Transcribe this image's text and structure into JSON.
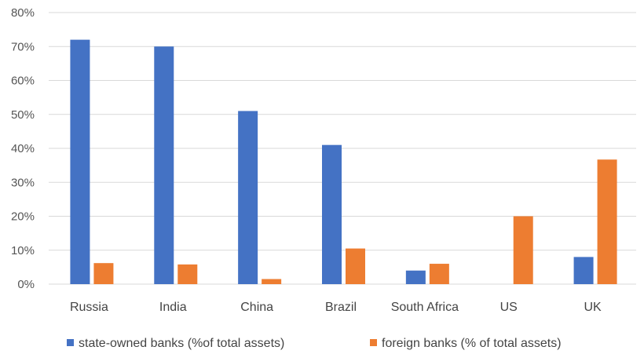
{
  "chart_data": {
    "type": "bar",
    "categories": [
      "Russia",
      "India",
      "China",
      "Brazil",
      "South Africa",
      "US",
      "UK"
    ],
    "series": [
      {
        "name": "state-owned banks (%of total assets)",
        "color": "#4472C4",
        "values": [
          72,
          70,
          51,
          41,
          4,
          null,
          8
        ]
      },
      {
        "name": "foreign banks (% of total assets)",
        "color": "#ED7D31",
        "values": [
          6.2,
          5.8,
          1.5,
          10.5,
          6,
          20,
          36.7
        ]
      }
    ],
    "y_ticks": [
      "0%",
      "10%",
      "20%",
      "30%",
      "40%",
      "50%",
      "60%",
      "70%",
      "80%"
    ],
    "ylim": [
      0,
      80
    ],
    "grid": true,
    "legend_position": "bottom"
  }
}
